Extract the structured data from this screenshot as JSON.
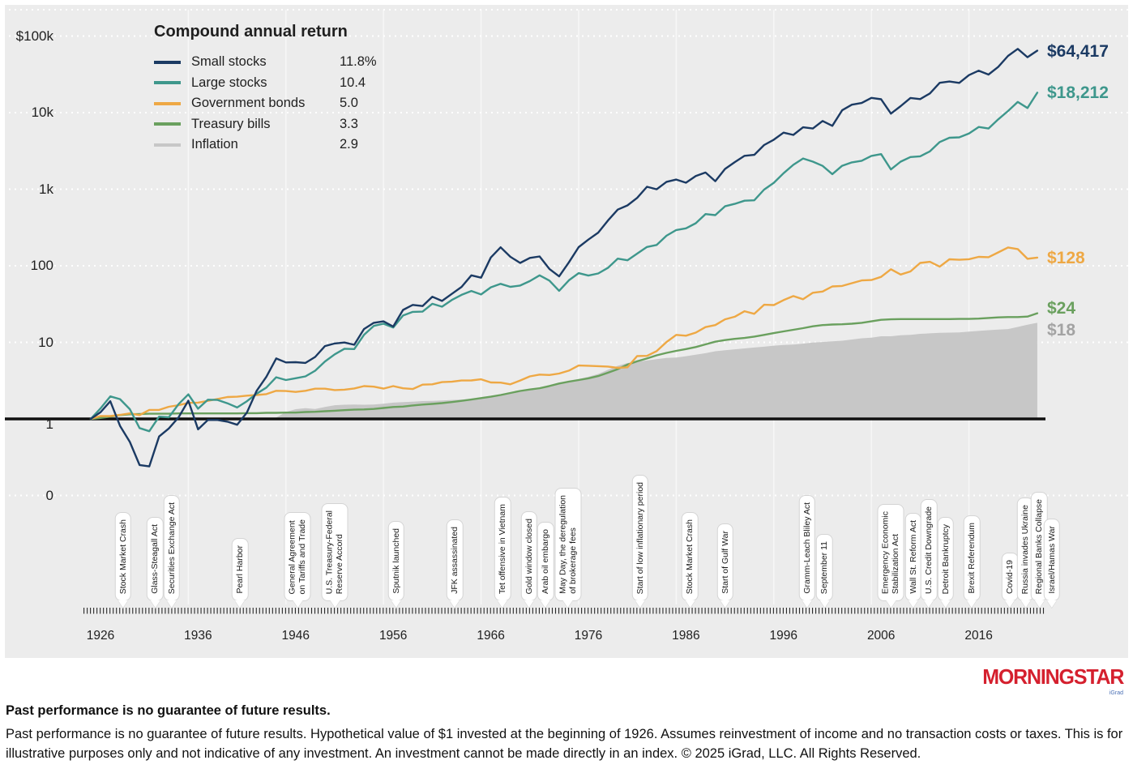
{
  "legend": {
    "title": "Compound annual return",
    "items": [
      {
        "name": "Small stocks",
        "value": "11.8%",
        "color": "#1b3a63"
      },
      {
        "name": "Large stocks",
        "value": "10.4",
        "color": "#3e978c"
      },
      {
        "name": "Government bonds",
        "value": "5.0",
        "color": "#eea844"
      },
      {
        "name": "Treasury bills",
        "value": "3.3",
        "color": "#6aa05e"
      },
      {
        "name": "Inflation",
        "value": "2.9",
        "color": "#c7c7c7"
      }
    ]
  },
  "chart_data": {
    "type": "line",
    "scale": "log",
    "title": "Compound annual return",
    "x_range": [
      1926,
      2023
    ],
    "y_ticks": [
      "$100k",
      "10k",
      "1k",
      "100",
      "10",
      "1",
      "0"
    ],
    "y_tick_values": [
      100000,
      10000,
      1000,
      100,
      10,
      1,
      0.1
    ],
    "x_ticks": [
      "1926",
      "1936",
      "1946",
      "1956",
      "1966",
      "1976",
      "1986",
      "1996",
      "2006",
      "2016"
    ],
    "grid": "horizontal-dotted-white",
    "legend_position": "top-left",
    "series": [
      {
        "name": "Small stocks",
        "color": "#1b3a63",
        "style": "line",
        "end_label": "$64,417",
        "end_value": 64417,
        "start_year": 1926,
        "values": [
          1.0,
          1.22,
          1.7,
          0.81,
          0.5,
          0.25,
          0.24,
          0.59,
          0.75,
          1.05,
          1.73,
          0.73,
          0.97,
          0.97,
          0.92,
          0.84,
          1.21,
          2.33,
          3.56,
          6.16,
          5.46,
          5.51,
          5.39,
          6.45,
          8.95,
          9.66,
          9.95,
          9.29,
          14.9,
          18.0,
          18.8,
          16.1,
          26.5,
          30.8,
          29.8,
          39.4,
          34.7,
          42.9,
          52.9,
          75.1,
          69.9,
          128.2,
          174.1,
          130.9,
          108.9,
          126.7,
          132.3,
          90.9,
          72.7,
          111.1,
          175.3,
          219.6,
          271.2,
          389.4,
          541.3,
          614.5,
          770.1,
          1075,
          997,
          1248,
          1335,
          1215,
          1488,
          1651,
          1274,
          1837,
          2256,
          2726,
          2811,
          3773,
          4433,
          5483,
          5121,
          6441,
          6201,
          7786,
          6728,
          10722,
          12687,
          13375,
          15599,
          14941,
          9707,
          12146,
          15540,
          15032,
          17808,
          24532,
          25468,
          24477,
          30912,
          35290,
          31398,
          39499,
          55000,
          68000,
          53000,
          64417
        ]
      },
      {
        "name": "Large stocks",
        "color": "#3e978c",
        "style": "line",
        "end_label": "$18,212",
        "end_value": 18212,
        "start_year": 1926,
        "values": [
          1.0,
          1.37,
          1.97,
          1.81,
          1.34,
          0.76,
          0.69,
          1.07,
          1.05,
          1.56,
          2.09,
          1.36,
          1.78,
          1.77,
          1.6,
          1.41,
          1.7,
          2.14,
          2.57,
          3.5,
          3.22,
          3.4,
          3.59,
          4.26,
          5.62,
          6.97,
          8.25,
          8.17,
          12.5,
          16.4,
          17.5,
          15.6,
          22.4,
          25.0,
          25.2,
          31.9,
          29.2,
          35.8,
          41.7,
          46.9,
          42.2,
          52.3,
          58.1,
          53.1,
          55.2,
          63.1,
          75.1,
          64.1,
          47.1,
          64.7,
          80.1,
          74.4,
          79.3,
          93.9,
          124,
          118,
          144,
          176,
          187,
          247,
          293,
          308,
          359,
          473,
          458,
          598,
          643,
          708,
          717,
          987,
          1213,
          1618,
          2081,
          2519,
          2289,
          2017,
          1572,
          2022,
          2242,
          2352,
          2724,
          2873,
          1810,
          2289,
          2634,
          2689,
          3119,
          4129,
          4694,
          4760,
          5329,
          6493,
          6209,
          8164,
          10500,
          13800,
          11500,
          18212
        ]
      },
      {
        "name": "Government bonds",
        "color": "#eea844",
        "style": "line",
        "end_label": "$128",
        "end_value": 128,
        "start_year": 1926,
        "values": [
          1.0,
          1.09,
          1.09,
          1.13,
          1.18,
          1.12,
          1.31,
          1.31,
          1.44,
          1.51,
          1.62,
          1.63,
          1.72,
          1.82,
          1.93,
          1.95,
          2.01,
          2.05,
          2.11,
          2.33,
          2.31,
          2.25,
          2.33,
          2.48,
          2.48,
          2.38,
          2.41,
          2.5,
          2.68,
          2.64,
          2.49,
          2.68,
          2.51,
          2.46,
          2.8,
          2.83,
          3.02,
          3.06,
          3.17,
          3.18,
          3.29,
          2.99,
          2.98,
          2.83,
          3.17,
          3.59,
          3.79,
          3.75,
          3.91,
          4.27,
          4.98,
          4.95,
          4.89,
          4.83,
          4.64,
          4.72,
          6.62,
          6.66,
          7.69,
          10.1,
          12.5,
          12.2,
          13.4,
          15.8,
          16.8,
          20.0,
          21.6,
          25.5,
          23.6,
          31.0,
          30.7,
          35.6,
          40.2,
          36.6,
          44.4,
          46.1,
          53.7,
          54.5,
          59.2,
          64.4,
          65.2,
          71.6,
          90.1,
          76.8,
          84.4,
          108.9,
          112.8,
          97.4,
          121.4,
          119.9,
          121.8,
          130.7,
          129.4,
          149.5,
          173.4,
          165.3,
          123.4,
          128.0
        ]
      },
      {
        "name": "Treasury bills",
        "color": "#6aa05e",
        "style": "line",
        "end_label": "$24",
        "end_value": 24,
        "start_year": 1926,
        "values": [
          1.0,
          1.03,
          1.07,
          1.12,
          1.15,
          1.16,
          1.17,
          1.17,
          1.17,
          1.18,
          1.18,
          1.18,
          1.18,
          1.18,
          1.18,
          1.18,
          1.19,
          1.19,
          1.2,
          1.2,
          1.21,
          1.21,
          1.23,
          1.24,
          1.26,
          1.28,
          1.3,
          1.32,
          1.33,
          1.35,
          1.39,
          1.43,
          1.45,
          1.5,
          1.54,
          1.57,
          1.61,
          1.66,
          1.72,
          1.79,
          1.87,
          1.95,
          2.05,
          2.18,
          2.32,
          2.42,
          2.51,
          2.69,
          2.9,
          3.07,
          3.22,
          3.39,
          3.63,
          4.01,
          4.46,
          5.12,
          5.66,
          6.16,
          6.77,
          7.29,
          7.74,
          8.16,
          8.68,
          9.41,
          10.2,
          10.7,
          11.1,
          11.4,
          11.9,
          12.5,
          13.2,
          13.9,
          14.6,
          15.3,
          16.2,
          16.8,
          17.1,
          17.2,
          17.5,
          18.0,
          18.8,
          19.7,
          20.0,
          20.1,
          20.1,
          20.1,
          20.1,
          20.1,
          20.1,
          20.2,
          20.2,
          20.4,
          20.8,
          21.2,
          21.4,
          21.4,
          21.7,
          24.0
        ]
      },
      {
        "name": "Inflation",
        "color": "#c7c7c7",
        "style": "area",
        "end_label": "$18",
        "end_value": 18,
        "label_color": "#a3a3a3",
        "start_year": 1926,
        "values": [
          1.0,
          0.98,
          0.97,
          0.97,
          0.91,
          0.83,
          0.74,
          0.75,
          0.76,
          0.79,
          0.8,
          0.82,
          0.8,
          0.8,
          0.81,
          0.89,
          0.97,
          1.0,
          1.02,
          1.04,
          1.23,
          1.34,
          1.38,
          1.35,
          1.43,
          1.51,
          1.53,
          1.54,
          1.53,
          1.54,
          1.58,
          1.63,
          1.66,
          1.68,
          1.71,
          1.72,
          1.74,
          1.77,
          1.79,
          1.82,
          1.88,
          1.94,
          2.03,
          2.15,
          2.27,
          2.35,
          2.43,
          2.64,
          2.96,
          3.17,
          3.32,
          3.55,
          3.87,
          4.38,
          4.93,
          5.37,
          5.58,
          5.79,
          6.02,
          6.25,
          6.32,
          6.6,
          6.89,
          7.21,
          7.65,
          7.88,
          8.11,
          8.33,
          8.55,
          8.77,
          9.06,
          9.22,
          9.37,
          9.62,
          9.95,
          10.1,
          10.3,
          10.5,
          10.9,
          11.3,
          11.5,
          12.0,
          12.0,
          12.4,
          12.5,
          12.9,
          13.1,
          13.3,
          13.4,
          13.5,
          13.8,
          14.1,
          14.4,
          14.7,
          14.9,
          15.9,
          17.0,
          18.0
        ]
      }
    ],
    "events": [
      {
        "year": 1929.3,
        "lines": [
          "Stock Market Crash"
        ]
      },
      {
        "year": 1932.6,
        "lines": [
          "Glass-Steagall Act"
        ]
      },
      {
        "year": 1934.3,
        "lines": [
          "Securities Exchange Act"
        ]
      },
      {
        "year": 1941.3,
        "lines": [
          "Pearl Harbor"
        ]
      },
      {
        "year": 1947.2,
        "lines": [
          "General Agreement",
          "on Tariffs and Trade"
        ]
      },
      {
        "year": 1951.0,
        "lines": [
          "U.S. Treasury-Federal",
          "Reserve Accord"
        ]
      },
      {
        "year": 1957.3,
        "lines": [
          "Sputnik launched"
        ]
      },
      {
        "year": 1963.3,
        "lines": [
          "JFK assassinated"
        ]
      },
      {
        "year": 1968.2,
        "lines": [
          "Tet offensive in Vietnam"
        ]
      },
      {
        "year": 1970.9,
        "lines": [
          "Gold window closed"
        ]
      },
      {
        "year": 1972.6,
        "lines": [
          "Arab oil embargo"
        ]
      },
      {
        "year": 1974.9,
        "lines": [
          "May Day, the deregulation",
          "of brokerage fees"
        ]
      },
      {
        "year": 1982.3,
        "lines": [
          "Start of low inflationary period"
        ]
      },
      {
        "year": 1987.4,
        "lines": [
          "Stock Market Crash"
        ]
      },
      {
        "year": 1991.0,
        "lines": [
          "Start of Gulf War"
        ]
      },
      {
        "year": 1999.4,
        "lines": [
          "Gramm-Leach Bliley Act"
        ]
      },
      {
        "year": 2001.2,
        "lines": [
          "September 11"
        ]
      },
      {
        "year": 2008.0,
        "lines": [
          "Emergency Economic",
          "Stabilization Act"
        ]
      },
      {
        "year": 2010.3,
        "lines": [
          "Wall St. Reform Act"
        ]
      },
      {
        "year": 2011.9,
        "lines": [
          "U.S. Credit Downgrade"
        ]
      },
      {
        "year": 2013.6,
        "lines": [
          "Detroit Bankruptcy"
        ]
      },
      {
        "year": 2016.3,
        "lines": [
          "Brexit Referendum"
        ]
      },
      {
        "year": 2020.2,
        "lines": [
          "Covid-19"
        ]
      },
      {
        "year": 2021.8,
        "lines": [
          "Russia invades Ukraine"
        ]
      },
      {
        "year": 2023.2,
        "lines": [
          "Regional Banks Collapse"
        ]
      },
      {
        "year": 2024.5,
        "lines": [
          "Israel/Hamas War"
        ]
      }
    ],
    "colors": {
      "background": "#ececec",
      "baseline": "#101010",
      "brand_red": "#d5202e"
    }
  },
  "branding": {
    "morningstar": "MORNINGSTAR",
    "sub": "iGrad"
  },
  "footer": {
    "headline": "Past performance is no guarantee of future results.",
    "body": "Past performance is no guarantee of future results. Hypothetical value of $1 invested at the beginning of 1926. Assumes reinvestment of income and no transaction costs or taxes. This is for illustrative purposes only and not indicative of any investment. An investment cannot be made directly in an index. © 2025 iGrad, LLC. All Rights Reserved."
  }
}
